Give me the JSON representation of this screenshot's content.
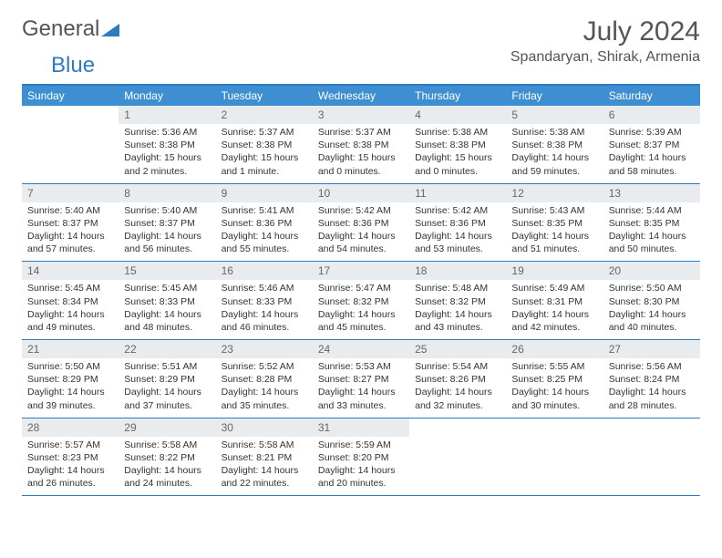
{
  "logo": {
    "text1": "General",
    "text2": "Blue",
    "triangle_color": "#2f7bbf"
  },
  "title": "July 2024",
  "location": "Spandaryan, Shirak, Armenia",
  "colors": {
    "header_bar": "#3d8fd1",
    "rule": "#2f7bbf",
    "daynum_bg": "#e9ecef",
    "text": "#333333",
    "title_text": "#555555"
  },
  "typography": {
    "title_fontsize": 30,
    "location_fontsize": 16,
    "dow_fontsize": 12,
    "cell_fontsize": 10.5
  },
  "day_names": [
    "Sunday",
    "Monday",
    "Tuesday",
    "Wednesday",
    "Thursday",
    "Friday",
    "Saturday"
  ],
  "weeks": [
    [
      null,
      {
        "n": "1",
        "sr": "Sunrise: 5:36 AM",
        "ss": "Sunset: 8:38 PM",
        "dl1": "Daylight: 15 hours",
        "dl2": "and 2 minutes."
      },
      {
        "n": "2",
        "sr": "Sunrise: 5:37 AM",
        "ss": "Sunset: 8:38 PM",
        "dl1": "Daylight: 15 hours",
        "dl2": "and 1 minute."
      },
      {
        "n": "3",
        "sr": "Sunrise: 5:37 AM",
        "ss": "Sunset: 8:38 PM",
        "dl1": "Daylight: 15 hours",
        "dl2": "and 0 minutes."
      },
      {
        "n": "4",
        "sr": "Sunrise: 5:38 AM",
        "ss": "Sunset: 8:38 PM",
        "dl1": "Daylight: 15 hours",
        "dl2": "and 0 minutes."
      },
      {
        "n": "5",
        "sr": "Sunrise: 5:38 AM",
        "ss": "Sunset: 8:38 PM",
        "dl1": "Daylight: 14 hours",
        "dl2": "and 59 minutes."
      },
      {
        "n": "6",
        "sr": "Sunrise: 5:39 AM",
        "ss": "Sunset: 8:37 PM",
        "dl1": "Daylight: 14 hours",
        "dl2": "and 58 minutes."
      }
    ],
    [
      {
        "n": "7",
        "sr": "Sunrise: 5:40 AM",
        "ss": "Sunset: 8:37 PM",
        "dl1": "Daylight: 14 hours",
        "dl2": "and 57 minutes."
      },
      {
        "n": "8",
        "sr": "Sunrise: 5:40 AM",
        "ss": "Sunset: 8:37 PM",
        "dl1": "Daylight: 14 hours",
        "dl2": "and 56 minutes."
      },
      {
        "n": "9",
        "sr": "Sunrise: 5:41 AM",
        "ss": "Sunset: 8:36 PM",
        "dl1": "Daylight: 14 hours",
        "dl2": "and 55 minutes."
      },
      {
        "n": "10",
        "sr": "Sunrise: 5:42 AM",
        "ss": "Sunset: 8:36 PM",
        "dl1": "Daylight: 14 hours",
        "dl2": "and 54 minutes."
      },
      {
        "n": "11",
        "sr": "Sunrise: 5:42 AM",
        "ss": "Sunset: 8:36 PM",
        "dl1": "Daylight: 14 hours",
        "dl2": "and 53 minutes."
      },
      {
        "n": "12",
        "sr": "Sunrise: 5:43 AM",
        "ss": "Sunset: 8:35 PM",
        "dl1": "Daylight: 14 hours",
        "dl2": "and 51 minutes."
      },
      {
        "n": "13",
        "sr": "Sunrise: 5:44 AM",
        "ss": "Sunset: 8:35 PM",
        "dl1": "Daylight: 14 hours",
        "dl2": "and 50 minutes."
      }
    ],
    [
      {
        "n": "14",
        "sr": "Sunrise: 5:45 AM",
        "ss": "Sunset: 8:34 PM",
        "dl1": "Daylight: 14 hours",
        "dl2": "and 49 minutes."
      },
      {
        "n": "15",
        "sr": "Sunrise: 5:45 AM",
        "ss": "Sunset: 8:33 PM",
        "dl1": "Daylight: 14 hours",
        "dl2": "and 48 minutes."
      },
      {
        "n": "16",
        "sr": "Sunrise: 5:46 AM",
        "ss": "Sunset: 8:33 PM",
        "dl1": "Daylight: 14 hours",
        "dl2": "and 46 minutes."
      },
      {
        "n": "17",
        "sr": "Sunrise: 5:47 AM",
        "ss": "Sunset: 8:32 PM",
        "dl1": "Daylight: 14 hours",
        "dl2": "and 45 minutes."
      },
      {
        "n": "18",
        "sr": "Sunrise: 5:48 AM",
        "ss": "Sunset: 8:32 PM",
        "dl1": "Daylight: 14 hours",
        "dl2": "and 43 minutes."
      },
      {
        "n": "19",
        "sr": "Sunrise: 5:49 AM",
        "ss": "Sunset: 8:31 PM",
        "dl1": "Daylight: 14 hours",
        "dl2": "and 42 minutes."
      },
      {
        "n": "20",
        "sr": "Sunrise: 5:50 AM",
        "ss": "Sunset: 8:30 PM",
        "dl1": "Daylight: 14 hours",
        "dl2": "and 40 minutes."
      }
    ],
    [
      {
        "n": "21",
        "sr": "Sunrise: 5:50 AM",
        "ss": "Sunset: 8:29 PM",
        "dl1": "Daylight: 14 hours",
        "dl2": "and 39 minutes."
      },
      {
        "n": "22",
        "sr": "Sunrise: 5:51 AM",
        "ss": "Sunset: 8:29 PM",
        "dl1": "Daylight: 14 hours",
        "dl2": "and 37 minutes."
      },
      {
        "n": "23",
        "sr": "Sunrise: 5:52 AM",
        "ss": "Sunset: 8:28 PM",
        "dl1": "Daylight: 14 hours",
        "dl2": "and 35 minutes."
      },
      {
        "n": "24",
        "sr": "Sunrise: 5:53 AM",
        "ss": "Sunset: 8:27 PM",
        "dl1": "Daylight: 14 hours",
        "dl2": "and 33 minutes."
      },
      {
        "n": "25",
        "sr": "Sunrise: 5:54 AM",
        "ss": "Sunset: 8:26 PM",
        "dl1": "Daylight: 14 hours",
        "dl2": "and 32 minutes."
      },
      {
        "n": "26",
        "sr": "Sunrise: 5:55 AM",
        "ss": "Sunset: 8:25 PM",
        "dl1": "Daylight: 14 hours",
        "dl2": "and 30 minutes."
      },
      {
        "n": "27",
        "sr": "Sunrise: 5:56 AM",
        "ss": "Sunset: 8:24 PM",
        "dl1": "Daylight: 14 hours",
        "dl2": "and 28 minutes."
      }
    ],
    [
      {
        "n": "28",
        "sr": "Sunrise: 5:57 AM",
        "ss": "Sunset: 8:23 PM",
        "dl1": "Daylight: 14 hours",
        "dl2": "and 26 minutes."
      },
      {
        "n": "29",
        "sr": "Sunrise: 5:58 AM",
        "ss": "Sunset: 8:22 PM",
        "dl1": "Daylight: 14 hours",
        "dl2": "and 24 minutes."
      },
      {
        "n": "30",
        "sr": "Sunrise: 5:58 AM",
        "ss": "Sunset: 8:21 PM",
        "dl1": "Daylight: 14 hours",
        "dl2": "and 22 minutes."
      },
      {
        "n": "31",
        "sr": "Sunrise: 5:59 AM",
        "ss": "Sunset: 8:20 PM",
        "dl1": "Daylight: 14 hours",
        "dl2": "and 20 minutes."
      },
      null,
      null,
      null
    ]
  ]
}
